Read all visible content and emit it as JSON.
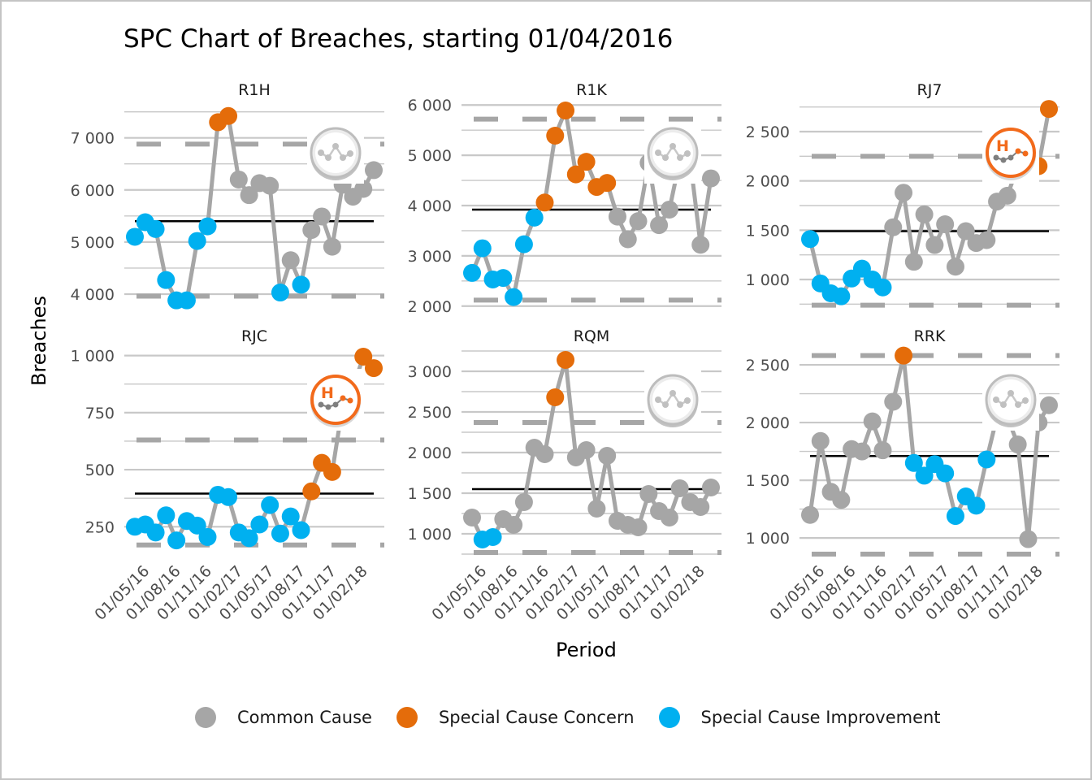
{
  "title": "SPC Chart of Breaches, starting 01/04/2016",
  "xlabel": "Period",
  "ylabel": "Breaches",
  "colors": {
    "common": "#a6a6a6",
    "concern": "#e46c0a",
    "improvement": "#00b0f0",
    "mean": "#000000",
    "limit": "#a6a6a6",
    "grid": "#c8c8c8"
  },
  "legend": [
    {
      "key": "common",
      "label": "Common Cause"
    },
    {
      "key": "concern",
      "label": "Special Cause Concern"
    },
    {
      "key": "improvement",
      "label": "Special Cause Improvement"
    }
  ],
  "x_tick_labels": [
    "01/05/16",
    "01/08/16",
    "01/11/16",
    "01/02/17",
    "01/05/17",
    "01/08/17",
    "01/11/17",
    "01/02/18"
  ],
  "chart_data": {
    "type": "line",
    "title": "SPC Chart of Breaches, starting 01/04/2016",
    "xlabel": "Period",
    "ylabel": "Breaches",
    "x": [
      "01/04/16",
      "01/05/16",
      "01/06/16",
      "01/07/16",
      "01/08/16",
      "01/09/16",
      "01/10/16",
      "01/11/16",
      "01/12/16",
      "01/01/17",
      "01/02/17",
      "01/03/17",
      "01/04/17",
      "01/05/17",
      "01/06/17",
      "01/07/17",
      "01/08/17",
      "01/09/17",
      "01/10/17",
      "01/11/17",
      "01/12/17",
      "01/01/18",
      "01/02/18",
      "01/03/18"
    ],
    "legend_position": "bottom",
    "grid": true,
    "panels": [
      {
        "name": "R1H",
        "yticks": [
          4000,
          5000,
          6000,
          7000
        ],
        "ylim": [
          3750,
          7650
        ],
        "mean": 5400,
        "ucl": 6880,
        "lcl": 3960,
        "icon": "common-cause",
        "values": [
          5100,
          5380,
          5250,
          4270,
          3880,
          3880,
          5020,
          5300,
          7300,
          7420,
          6200,
          5900,
          6130,
          6080,
          4030,
          4650,
          4180,
          5230,
          5490,
          4910,
          6100,
          5870,
          6020,
          6380
        ],
        "status": [
          "I",
          "I",
          "I",
          "I",
          "I",
          "I",
          "I",
          "I",
          "C",
          "C",
          "N",
          "N",
          "N",
          "N",
          "I",
          "N",
          "I",
          "N",
          "N",
          "N",
          "N",
          "N",
          "N",
          "N"
        ]
      },
      {
        "name": "R1K",
        "yticks": [
          2000,
          3000,
          4000,
          5000,
          6000
        ],
        "ylim": [
          1980,
          6020
        ],
        "mean": 3920,
        "ucl": 5720,
        "lcl": 2120,
        "icon": "common-cause",
        "values": [
          2660,
          3150,
          2530,
          2560,
          2180,
          3230,
          3760,
          4060,
          5390,
          5890,
          4620,
          4870,
          4370,
          4450,
          3780,
          3330,
          3690,
          4850,
          3610,
          3920,
          4900,
          4900,
          3220,
          4540
        ],
        "status": [
          "I",
          "I",
          "I",
          "I",
          "I",
          "I",
          "I",
          "C",
          "C",
          "C",
          "C",
          "C",
          "C",
          "C",
          "N",
          "N",
          "N",
          "N",
          "N",
          "N",
          "N",
          "N",
          "N",
          "N"
        ]
      },
      {
        "name": "RJ7",
        "yticks": [
          1000,
          1500,
          2000,
          2500
        ],
        "ylim": [
          720,
          2780
        ],
        "mean": 1490,
        "ucl": 2250,
        "lcl": 740,
        "icon": "concern-high",
        "values": [
          1410,
          960,
          860,
          830,
          1010,
          1110,
          1000,
          920,
          1530,
          1880,
          1180,
          1660,
          1350,
          1560,
          1130,
          1490,
          1370,
          1400,
          1790,
          1850,
          2150,
          2250,
          2150,
          2730
        ],
        "status": [
          "I",
          "I",
          "I",
          "I",
          "I",
          "I",
          "I",
          "I",
          "N",
          "N",
          "N",
          "N",
          "N",
          "N",
          "N",
          "N",
          "N",
          "N",
          "N",
          "N",
          "N",
          "N",
          "C",
          "C"
        ]
      },
      {
        "name": "RJC",
        "yticks": [
          250,
          500,
          750,
          1000
        ],
        "ylim": [
          130,
          1020
        ],
        "mean": 395,
        "ucl": 630,
        "lcl": 170,
        "icon": "concern-high",
        "values": [
          250,
          260,
          225,
          300,
          190,
          275,
          255,
          205,
          390,
          380,
          225,
          200,
          260,
          345,
          220,
          295,
          235,
          405,
          530,
          490,
          780,
          860,
          995,
          945
        ],
        "status": [
          "I",
          "I",
          "I",
          "I",
          "I",
          "I",
          "I",
          "I",
          "I",
          "I",
          "I",
          "I",
          "I",
          "I",
          "I",
          "I",
          "I",
          "C",
          "C",
          "C",
          "C",
          "C",
          "C",
          "C"
        ]
      },
      {
        "name": "RQM",
        "yticks": [
          1000,
          1500,
          2000,
          2500,
          3000
        ],
        "ylim": [
          750,
          3250
        ],
        "mean": 1550,
        "ucl": 2370,
        "lcl": 770,
        "icon": "common-cause",
        "values": [
          1200,
          930,
          960,
          1180,
          1110,
          1390,
          2060,
          1980,
          2680,
          3140,
          1940,
          2030,
          1310,
          1960,
          1160,
          1110,
          1080,
          1490,
          1280,
          1200,
          1560,
          1390,
          1330,
          1570
        ],
        "status": [
          "N",
          "I",
          "I",
          "N",
          "N",
          "N",
          "N",
          "N",
          "C",
          "C",
          "N",
          "N",
          "N",
          "N",
          "N",
          "N",
          "N",
          "N",
          "N",
          "N",
          "N",
          "N",
          "N",
          "N"
        ]
      },
      {
        "name": "RRK",
        "yticks": [
          1000,
          1500,
          2000,
          2500
        ],
        "ylim": [
          860,
          2620
        ],
        "mean": 1710,
        "ucl": 2580,
        "lcl": 860,
        "icon": "common-cause",
        "values": [
          1200,
          1840,
          1400,
          1330,
          1770,
          1750,
          2010,
          1760,
          2180,
          2580,
          1650,
          1540,
          1640,
          1560,
          1190,
          1360,
          1280,
          1680,
          2050,
          2050,
          1810,
          990,
          2000,
          2150
        ],
        "status": [
          "N",
          "N",
          "N",
          "N",
          "N",
          "N",
          "N",
          "N",
          "N",
          "C",
          "I",
          "I",
          "I",
          "I",
          "I",
          "I",
          "I",
          "I",
          "N",
          "N",
          "N",
          "N",
          "N",
          "N"
        ]
      }
    ]
  }
}
